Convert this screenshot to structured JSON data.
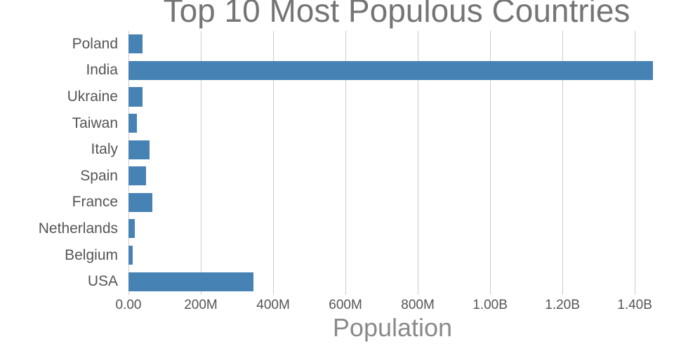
{
  "chart_data": {
    "type": "bar",
    "orientation": "horizontal",
    "title": "Top 10 Most Populous Countries",
    "xlabel": "Population",
    "categories": [
      "Poland",
      "India",
      "Ukraine",
      "Taiwan",
      "Italy",
      "Spain",
      "France",
      "Netherlands",
      "Belgium",
      "USA"
    ],
    "values": [
      38000000,
      1450000000,
      38000000,
      23000000,
      59000000,
      48000000,
      66000000,
      18000000,
      12000000,
      345000000
    ],
    "xlim": [
      0,
      1460000000
    ],
    "ticks": [
      {
        "label": "0.00",
        "value": 0
      },
      {
        "label": "200M",
        "value": 200000000
      },
      {
        "label": "400M",
        "value": 400000000
      },
      {
        "label": "600M",
        "value": 600000000
      },
      {
        "label": "800M",
        "value": 800000000
      },
      {
        "label": "1.00B",
        "value": 1000000000
      },
      {
        "label": "1.20B",
        "value": 1200000000
      },
      {
        "label": "1.40B",
        "value": 1400000000
      }
    ],
    "grid": "vertical",
    "legend_position": "none",
    "colors": {
      "bar": "#4682B4",
      "grid": "#cccccc",
      "title": "#757575",
      "tick": "#555555",
      "axis_label": "#8a8a8a"
    }
  }
}
